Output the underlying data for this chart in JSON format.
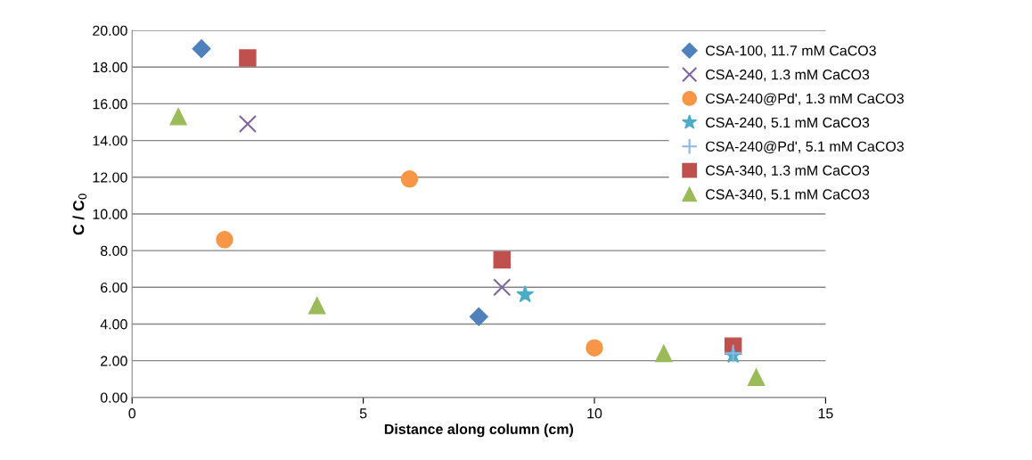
{
  "chart_data": {
    "type": "scatter",
    "xlabel": "Distance along column (cm)",
    "ylabel": "C / C$_{0}$",
    "xlim": [
      0,
      15
    ],
    "xticks": [
      0,
      5,
      10,
      15
    ],
    "ylim": [
      0,
      20
    ],
    "yticks": [
      {
        "value": 0,
        "label": "0.00"
      },
      {
        "value": 2,
        "label": "2.00"
      },
      {
        "value": 4,
        "label": "4.00"
      },
      {
        "value": 6,
        "label": "6.00"
      },
      {
        "value": 8,
        "label": "8.00"
      },
      {
        "value": 10,
        "label": "10.00"
      },
      {
        "value": 12,
        "label": "12.00"
      },
      {
        "value": 14,
        "label": "14.00"
      },
      {
        "value": 16,
        "label": "16.00"
      },
      {
        "value": 18,
        "label": "18.00"
      },
      {
        "value": 20,
        "label": "20.00"
      }
    ],
    "grid": "y",
    "legend": "right",
    "series": [
      {
        "name": "CSA-100, 11.7 mM CaCO3",
        "color": "#4f81bd",
        "marker": "diamond",
        "x": [
          1.5,
          7.5
        ],
        "values": [
          19.0,
          4.4
        ]
      },
      {
        "name": "CSA-240, 1.3 mM CaCO3",
        "color": "#8064a2",
        "marker": "cross",
        "x": [
          2.5,
          8.0
        ],
        "values": [
          14.9,
          6.0
        ]
      },
      {
        "name": "CSA-240@Pd', 1.3 mM CaCO3",
        "color": "#f79646",
        "marker": "circle",
        "x": [
          2.0,
          6.0,
          10.0
        ],
        "values": [
          8.6,
          11.9,
          2.7
        ]
      },
      {
        "name": "CSA-240, 5.1 mM CaCO3",
        "color": "#4bacc6",
        "marker": "star",
        "x": [
          8.5,
          13.0
        ],
        "values": [
          5.6,
          2.3
        ]
      },
      {
        "name": "CSA-240@Pd', 5.1 mM CaCO3",
        "color": "#8eb4e3",
        "marker": "plus",
        "x": [
          13.0
        ],
        "values": [
          2.4
        ]
      },
      {
        "name": "CSA-340, 1.3 mM CaCO3",
        "color": "#c0504d",
        "marker": "square",
        "x": [
          2.5,
          8.0,
          13.0
        ],
        "values": [
          18.5,
          7.5,
          2.8
        ]
      },
      {
        "name": "CSA-340, 5.1 mM CaCO3",
        "color": "#9bbb59",
        "marker": "triangle",
        "x": [
          1.0,
          4.0,
          11.5,
          13.5
        ],
        "values": [
          15.3,
          5.0,
          2.4,
          1.1
        ]
      }
    ]
  }
}
